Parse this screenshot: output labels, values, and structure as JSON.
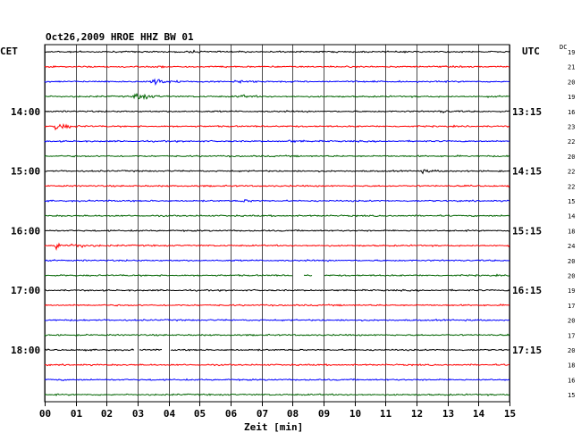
{
  "chart_data": {
    "type": "line",
    "title": "Oct26,2009   HROE HHZ BW 01",
    "left_axis_label": "CET",
    "right_axis_label": "UTC",
    "dc_label": "DC",
    "xlabel": "Zeit [min]",
    "xlim": [
      0,
      15
    ],
    "x_ticks": [
      "00",
      "01",
      "02",
      "03",
      "04",
      "05",
      "06",
      "07",
      "08",
      "09",
      "10",
      "11",
      "12",
      "13",
      "14",
      "15"
    ],
    "grid": true,
    "trace_colors": [
      "#000000",
      "#ff0000",
      "#0000ff",
      "#006400"
    ],
    "left_hour_labels": [
      {
        "row": 4,
        "text": "14:00"
      },
      {
        "row": 8,
        "text": "15:00"
      },
      {
        "row": 12,
        "text": "16:00"
      },
      {
        "row": 16,
        "text": "17:00"
      },
      {
        "row": 20,
        "text": "18:00"
      }
    ],
    "right_hour_labels": [
      {
        "row": 4,
        "text": "13:15"
      },
      {
        "row": 8,
        "text": "14:15"
      },
      {
        "row": 12,
        "text": "15:15"
      },
      {
        "row": 16,
        "text": "16:15"
      },
      {
        "row": 20,
        "text": "17:15"
      }
    ],
    "dc_offsets": [
      19,
      21,
      20,
      19,
      16,
      23,
      22,
      20,
      22,
      22,
      15,
      14,
      18,
      24,
      20,
      20,
      19,
      17,
      20,
      17,
      20,
      18,
      16,
      15
    ],
    "trace_count": 24,
    "events": [
      {
        "row": 1,
        "x_min": 3.7,
        "strength": 0.18
      },
      {
        "row": 0,
        "x_min": 4.6,
        "strength": 0.2
      },
      {
        "row": 2,
        "x_min": 3.55,
        "strength": 1.0
      },
      {
        "row": 2,
        "x_min": 6.2,
        "strength": 0.35
      },
      {
        "row": 3,
        "x_min": 3.0,
        "strength": 1.0
      },
      {
        "row": 3,
        "x_min": 6.3,
        "strength": 0.3
      },
      {
        "row": 5,
        "x_min": 0.4,
        "strength": 0.9
      },
      {
        "row": 4,
        "x_min": 12.8,
        "strength": 0.2
      },
      {
        "row": 8,
        "x_min": 12.2,
        "strength": 0.3
      },
      {
        "row": 10,
        "x_min": 6.4,
        "strength": 0.25
      },
      {
        "row": 13,
        "x_min": 0.35,
        "strength": 0.95
      },
      {
        "row": 13,
        "x_min": 1.1,
        "strength": 0.4
      },
      {
        "row": 6,
        "x_min": 7.9,
        "strength": 0.18
      }
    ],
    "gaps": [
      {
        "row": 15,
        "from_min": 8.0,
        "to_min": 8.35
      },
      {
        "row": 15,
        "from_min": 8.65,
        "to_min": 9.0
      },
      {
        "row": 20,
        "from_min": 2.9,
        "to_min": 3.05
      },
      {
        "row": 20,
        "from_min": 3.8,
        "to_min": 4.05
      }
    ]
  }
}
